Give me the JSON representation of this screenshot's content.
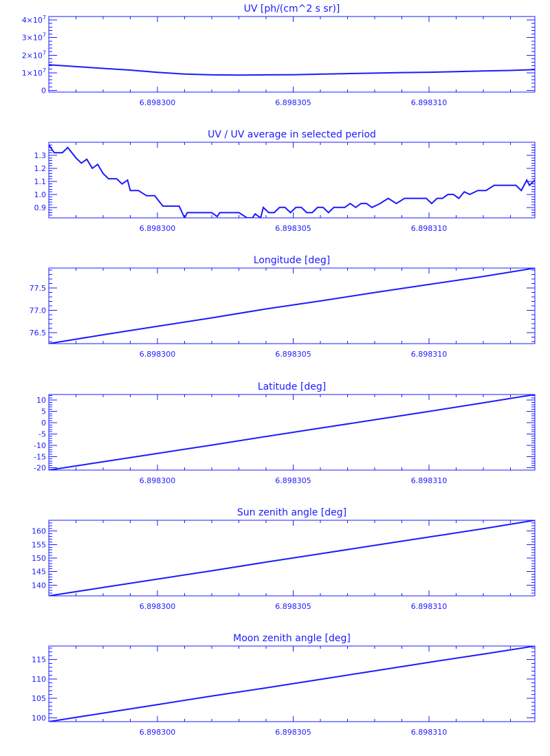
{
  "colors": {
    "line": "#1a1aff",
    "background": "#ffffff"
  },
  "chart_data": [
    {
      "type": "line",
      "title": "UV [ph/(cm^2 s sr)]",
      "xlabel": "",
      "ylabel": "",
      "xlim": [
        6.898296,
        6.8983139
      ],
      "ylim": [
        -1000000,
        42000000
      ],
      "grid": false,
      "x_ticks": [
        "6.898300",
        "6.898305",
        "6.898310"
      ],
      "y_ticks": [
        {
          "value": 0,
          "mantissa": "0",
          "exponent": ""
        },
        {
          "value": 10000000,
          "mantissa": "1×10",
          "exponent": "7"
        },
        {
          "value": 20000000,
          "mantissa": "2×10",
          "exponent": "7"
        },
        {
          "value": 30000000,
          "mantissa": "3×10",
          "exponent": "7"
        },
        {
          "value": 40000000,
          "mantissa": "4×10",
          "exponent": "7"
        }
      ],
      "x": [
        6.898296,
        6.898297,
        6.898298,
        6.898299,
        6.8983,
        6.898301,
        6.898302,
        6.898303,
        6.898304,
        6.898305,
        6.898306,
        6.898307,
        6.898308,
        6.898309,
        6.89831,
        6.898311,
        6.898312,
        6.898313,
        6.8983139
      ],
      "y": [
        14500000,
        13500000,
        12500000,
        11500000,
        10200000,
        9300000,
        8800000,
        8700000,
        8800000,
        8900000,
        9200000,
        9500000,
        9800000,
        10100000,
        10300000,
        10600000,
        11000000,
        11300000,
        11800000
      ]
    },
    {
      "type": "line",
      "title": "UV / UV average in selected period",
      "xlabel": "",
      "ylabel": "",
      "xlim": [
        6.898296,
        6.8983139
      ],
      "ylim": [
        0.82,
        1.4
      ],
      "grid": false,
      "x_ticks": [
        "6.898300",
        "6.898305",
        "6.898310"
      ],
      "y_ticks": [
        {
          "value": 0.9,
          "label": "0.9"
        },
        {
          "value": 1.0,
          "label": "1.0"
        },
        {
          "value": 1.1,
          "label": "1.1"
        },
        {
          "value": 1.2,
          "label": "1.2"
        },
        {
          "value": 1.3,
          "label": "1.3"
        }
      ],
      "x": [
        6.898296,
        6.8982962,
        6.8982965,
        6.8982967,
        6.898297,
        6.8982972,
        6.8982974,
        6.8982976,
        6.8982978,
        6.898298,
        6.8982982,
        6.8982985,
        6.8982987,
        6.8982989,
        6.898299,
        6.8982993,
        6.8982996,
        6.8982999,
        6.8983002,
        6.8983006,
        6.8983008,
        6.898301,
        6.8983011,
        6.8983015,
        6.898302,
        6.8983022,
        6.8983023,
        6.8983026,
        6.898303,
        6.8983033,
        6.8983035,
        6.8983036,
        6.8983038,
        6.8983039,
        6.8983041,
        6.8983043,
        6.8983045,
        6.8983047,
        6.8983049,
        6.8983051,
        6.8983053,
        6.8983055,
        6.8983057,
        6.8983059,
        6.8983061,
        6.8983063,
        6.8983065,
        6.8983067,
        6.8983069,
        6.8983071,
        6.8983073,
        6.8983075,
        6.8983077,
        6.8983079,
        6.8983082,
        6.8983085,
        6.8983088,
        6.8983091,
        6.8983094,
        6.8983097,
        6.8983099,
        6.8983101,
        6.8983103,
        6.8983105,
        6.8983107,
        6.8983109,
        6.8983111,
        6.8983113,
        6.8983115,
        6.8983118,
        6.8983121,
        6.8983124,
        6.8983126,
        6.8983129,
        6.8983132,
        6.8983134,
        6.8983136,
        6.8983137,
        6.8983139
      ],
      "y": [
        1.38,
        1.32,
        1.32,
        1.36,
        1.28,
        1.24,
        1.27,
        1.2,
        1.23,
        1.16,
        1.12,
        1.12,
        1.08,
        1.11,
        1.03,
        1.03,
        0.99,
        0.99,
        0.91,
        0.91,
        0.91,
        0.82,
        0.86,
        0.86,
        0.86,
        0.83,
        0.86,
        0.86,
        0.86,
        0.82,
        0.82,
        0.85,
        0.82,
        0.9,
        0.86,
        0.86,
        0.9,
        0.9,
        0.86,
        0.9,
        0.9,
        0.86,
        0.86,
        0.9,
        0.9,
        0.86,
        0.9,
        0.9,
        0.9,
        0.93,
        0.9,
        0.93,
        0.93,
        0.9,
        0.93,
        0.97,
        0.93,
        0.97,
        0.97,
        0.97,
        0.97,
        0.93,
        0.97,
        0.97,
        1.0,
        1.0,
        0.97,
        1.02,
        1.0,
        1.03,
        1.03,
        1.07,
        1.07,
        1.07,
        1.07,
        1.03,
        1.11,
        1.07,
        1.11
      ]
    },
    {
      "type": "line",
      "title": "Longitude [deg]",
      "xlabel": "",
      "ylabel": "",
      "xlim": [
        6.898296,
        6.8983139
      ],
      "ylim": [
        76.25,
        77.95
      ],
      "grid": false,
      "x_ticks": [
        "6.898300",
        "6.898305",
        "6.898310"
      ],
      "y_ticks": [
        {
          "value": 76.5,
          "label": "76.5"
        },
        {
          "value": 77.0,
          "label": "77.0"
        },
        {
          "value": 77.5,
          "label": "77.5"
        }
      ],
      "x": [
        6.898296,
        6.898298,
        6.8983,
        6.898302,
        6.898304,
        6.898306,
        6.898308,
        6.89831,
        6.898312,
        6.8983139
      ],
      "y": [
        76.25,
        76.45,
        76.64,
        76.83,
        77.03,
        77.21,
        77.4,
        77.58,
        77.76,
        77.95
      ]
    },
    {
      "type": "line",
      "title": "Latitude [deg]",
      "xlabel": "",
      "ylabel": "",
      "xlim": [
        6.898296,
        6.8983139
      ],
      "ylim": [
        -21,
        12.5
      ],
      "grid": false,
      "x_ticks": [
        "6.898300",
        "6.898305",
        "6.898310"
      ],
      "y_ticks": [
        {
          "value": -20,
          "label": "-20"
        },
        {
          "value": -15,
          "label": "-15"
        },
        {
          "value": -10,
          "label": "-10"
        },
        {
          "value": -5,
          "label": "-5"
        },
        {
          "value": 0,
          "label": "0"
        },
        {
          "value": 5,
          "label": "5"
        },
        {
          "value": 10,
          "label": "10"
        }
      ],
      "x": [
        6.898296,
        6.898298,
        6.8983,
        6.898302,
        6.898304,
        6.898306,
        6.898308,
        6.89831,
        6.898312,
        6.8983139
      ],
      "y": [
        -21,
        -17.3,
        -13.6,
        -9.9,
        -6.1,
        -2.4,
        1.3,
        5.0,
        8.8,
        12.5
      ]
    },
    {
      "type": "line",
      "title": "Sun zenith angle [deg]",
      "xlabel": "",
      "ylabel": "",
      "xlim": [
        6.898296,
        6.8983139
      ],
      "ylim": [
        136,
        164
      ],
      "grid": false,
      "x_ticks": [
        "6.898300",
        "6.898305",
        "6.898310"
      ],
      "y_ticks": [
        {
          "value": 140,
          "label": "140"
        },
        {
          "value": 145,
          "label": "145"
        },
        {
          "value": 150,
          "label": "150"
        },
        {
          "value": 155,
          "label": "155"
        },
        {
          "value": 160,
          "label": "160"
        }
      ],
      "x": [
        6.898296,
        6.898298,
        6.8983,
        6.898302,
        6.898304,
        6.898306,
        6.898308,
        6.89831,
        6.898312,
        6.8983139
      ],
      "y": [
        136,
        139.1,
        142.2,
        145.3,
        148.5,
        151.6,
        154.7,
        157.8,
        160.9,
        164
      ]
    },
    {
      "type": "line",
      "title": "Moon zenith angle [deg]",
      "xlabel": "",
      "ylabel": "",
      "xlim": [
        6.898296,
        6.8983139
      ],
      "ylim": [
        99,
        118.5
      ],
      "grid": false,
      "x_ticks": [
        "6.898300",
        "6.898305",
        "6.898310"
      ],
      "y_ticks": [
        {
          "value": 100,
          "label": "100"
        },
        {
          "value": 105,
          "label": "105"
        },
        {
          "value": 110,
          "label": "110"
        },
        {
          "value": 115,
          "label": "115"
        }
      ],
      "x": [
        6.898296,
        6.898298,
        6.8983,
        6.898302,
        6.898304,
        6.898306,
        6.898308,
        6.89831,
        6.898312,
        6.8983139
      ],
      "y": [
        99,
        101.2,
        103.4,
        105.6,
        107.7,
        109.9,
        112.1,
        114.3,
        116.4,
        118.5
      ]
    }
  ]
}
